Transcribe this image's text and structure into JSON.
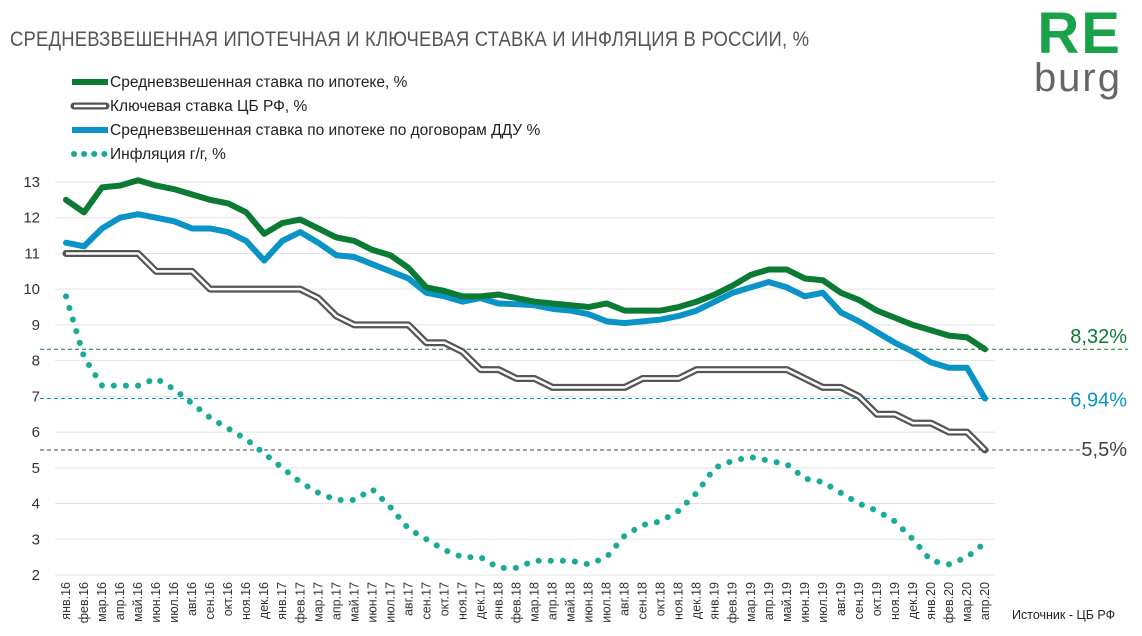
{
  "title": "СРЕДНЕВЗВЕШЕННАЯ ИПОТЕЧНАЯ  И КЛЮЧЕВАЯ СТАВКА И ИНФЛЯЦИЯ В РОССИИ, %",
  "logo": {
    "top": "RE",
    "bottom": "burg"
  },
  "source": "Источник  - ЦБ РФ",
  "colors": {
    "mortgage": "#0b7a32",
    "key_rate": "#555555",
    "ddu": "#0a93c6",
    "inflation": "#1aab96"
  },
  "chart_data": {
    "type": "line",
    "title": "СРЕДНЕВЗВЕШЕННАЯ ИПОТЕЧНАЯ  И КЛЮЧЕВАЯ СТАВКА И ИНФЛЯЦИЯ В РОССИИ, %",
    "ylim": [
      2,
      13
    ],
    "yticks": [
      "2",
      "3",
      "4",
      "5",
      "6",
      "7",
      "8",
      "9",
      "10",
      "11",
      "12",
      "13"
    ],
    "grid": true,
    "legend": "top-left",
    "categories": [
      "янв.16",
      "фев.16",
      "мар.16",
      "апр.16",
      "май.16",
      "июн.16",
      "июл.16",
      "авг.16",
      "сен.16",
      "окт.16",
      "ноя.16",
      "дек.16",
      "янв.17",
      "фев.17",
      "мар.17",
      "апр.17",
      "май.17",
      "июн.17",
      "июл.17",
      "авг.17",
      "сен.17",
      "окт.17",
      "ноя.17",
      "дек.17",
      "янв.18",
      "фев.18",
      "мар.18",
      "апр.18",
      "май.18",
      "июн.18",
      "июл.18",
      "авг.18",
      "сен.18",
      "окт.18",
      "ноя.18",
      "дек.18",
      "янв.19",
      "фев.19",
      "мар.19",
      "апр.19",
      "май.19",
      "июн.19",
      "июл.19",
      "авг.19",
      "сен.19",
      "окт.19",
      "ноя.19",
      "дек.19",
      "янв.20",
      "фев.20",
      "мар.20",
      "апр.20"
    ],
    "series": [
      {
        "name": "Средневзвешенная ставка по ипотеке, %",
        "style": "solid",
        "values": [
          12.5,
          12.15,
          12.85,
          12.9,
          13.05,
          12.9,
          12.8,
          12.65,
          12.5,
          12.4,
          12.15,
          11.55,
          11.85,
          11.95,
          11.7,
          11.45,
          11.35,
          11.1,
          10.95,
          10.6,
          10.05,
          9.95,
          9.8,
          9.8,
          9.85,
          9.75,
          9.65,
          9.6,
          9.55,
          9.5,
          9.6,
          9.4,
          9.4,
          9.4,
          9.5,
          9.65,
          9.85,
          10.1,
          10.4,
          10.55,
          10.55,
          10.3,
          10.25,
          9.9,
          9.7,
          9.4,
          9.2,
          9.0,
          8.85,
          8.7,
          8.65,
          8.32
        ]
      },
      {
        "name": "Ключевая ставка ЦБ РФ, %",
        "style": "double",
        "values": [
          11,
          11,
          11,
          11,
          11,
          10.5,
          10.5,
          10.5,
          10,
          10,
          10,
          10,
          10,
          10,
          9.75,
          9.25,
          9,
          9,
          9,
          9,
          8.5,
          8.5,
          8.25,
          7.75,
          7.75,
          7.5,
          7.5,
          7.25,
          7.25,
          7.25,
          7.25,
          7.25,
          7.5,
          7.5,
          7.5,
          7.75,
          7.75,
          7.75,
          7.75,
          7.75,
          7.75,
          7.5,
          7.25,
          7.25,
          7.0,
          6.5,
          6.5,
          6.25,
          6.25,
          6.0,
          6.0,
          5.5
        ]
      },
      {
        "name": "Средневзвешенная ставка по ипотеке по договорам ДДУ %",
        "style": "solid",
        "values": [
          11.3,
          11.2,
          11.7,
          12.0,
          12.1,
          12.0,
          11.9,
          11.7,
          11.7,
          11.6,
          11.35,
          10.8,
          11.35,
          11.6,
          11.3,
          10.95,
          10.9,
          10.7,
          10.5,
          10.3,
          9.9,
          9.8,
          9.65,
          9.75,
          9.6,
          9.58,
          9.55,
          9.45,
          9.4,
          9.3,
          9.1,
          9.05,
          9.1,
          9.15,
          9.25,
          9.4,
          9.65,
          9.9,
          10.05,
          10.2,
          10.05,
          9.8,
          9.9,
          9.35,
          9.1,
          8.8,
          8.5,
          8.25,
          7.95,
          7.8,
          7.8,
          6.94
        ]
      },
      {
        "name": "Инфляция г/г,  %",
        "style": "dotted",
        "values": [
          9.8,
          8.1,
          7.3,
          7.3,
          7.3,
          7.5,
          7.2,
          6.8,
          6.4,
          6.1,
          5.8,
          5.4,
          5.0,
          4.6,
          4.3,
          4.1,
          4.1,
          4.4,
          3.9,
          3.3,
          3.0,
          2.7,
          2.5,
          2.5,
          2.2,
          2.2,
          2.4,
          2.4,
          2.4,
          2.3,
          2.5,
          3.1,
          3.4,
          3.5,
          3.8,
          4.3,
          5.0,
          5.2,
          5.3,
          5.2,
          5.1,
          4.7,
          4.6,
          4.3,
          4.0,
          3.8,
          3.5,
          3.0,
          2.4,
          2.3,
          2.5,
          2.9
        ]
      }
    ],
    "reference_lines": [
      {
        "value": 8.32,
        "label": "8,32%",
        "color": "#0b7a32"
      },
      {
        "value": 6.94,
        "label": "6,94%",
        "color": "#0a93c6"
      },
      {
        "value": 5.5,
        "label": "5,5%",
        "color": "#444444"
      }
    ]
  }
}
